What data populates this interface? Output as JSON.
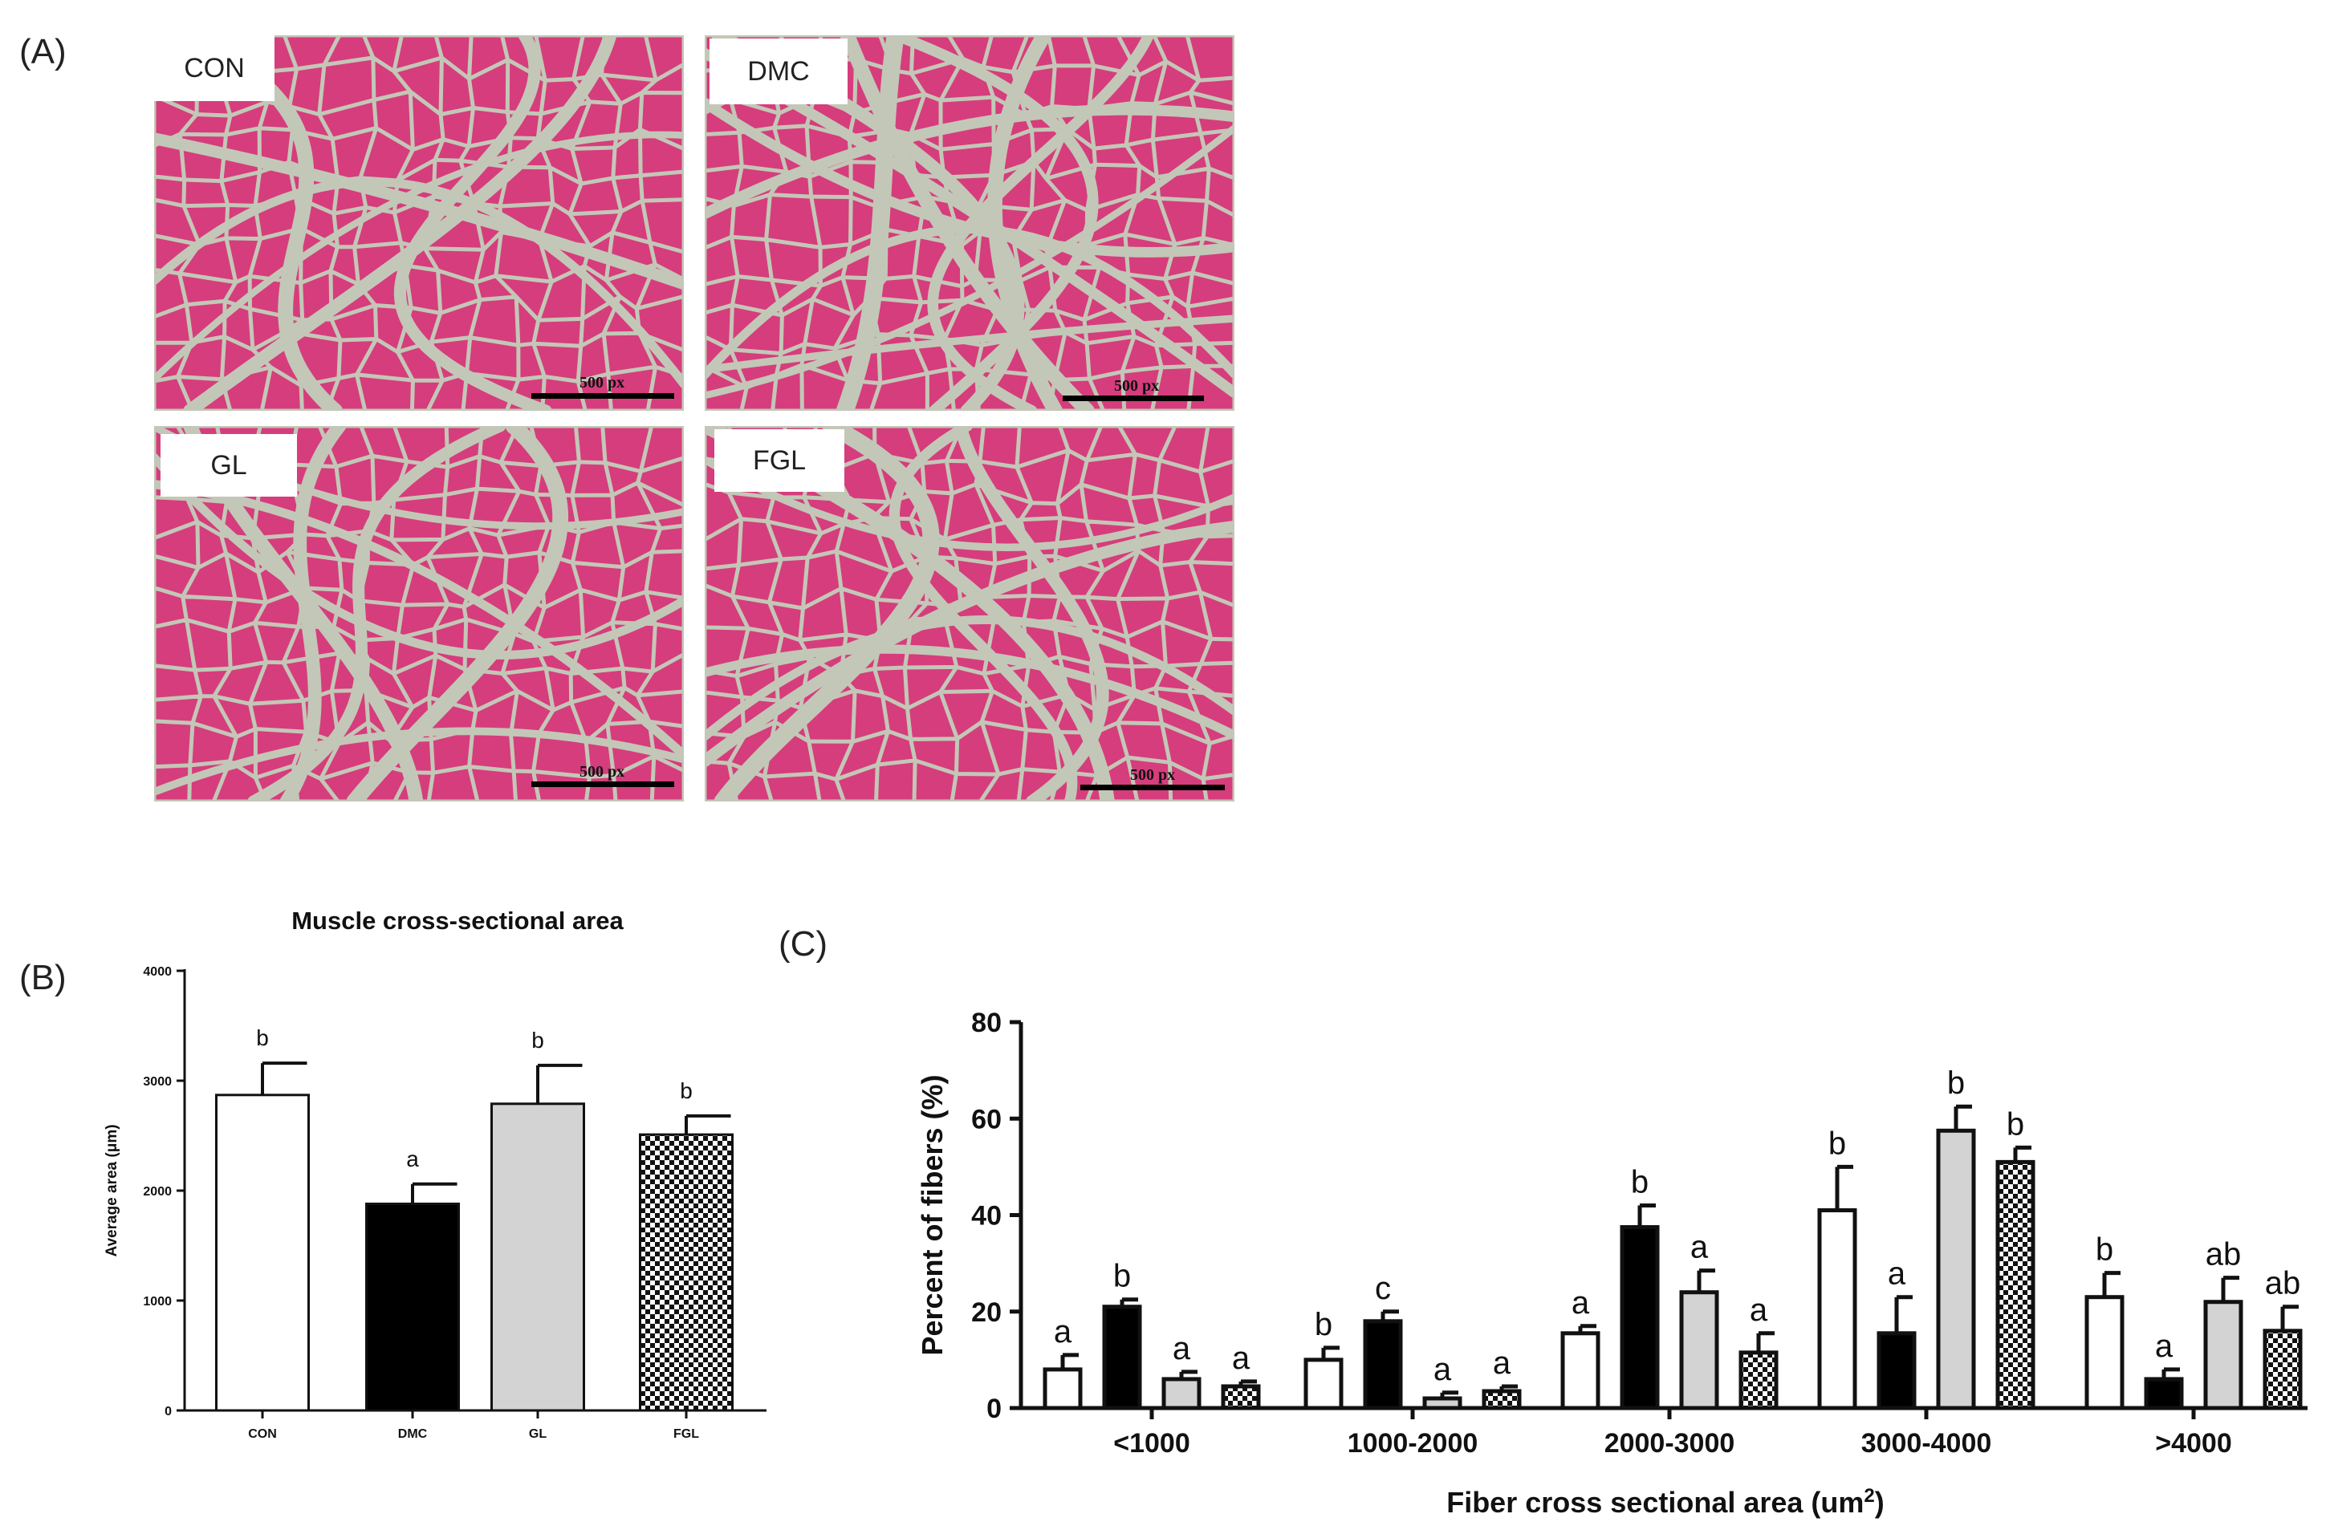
{
  "panel_a": {
    "letter": "(A)",
    "images": [
      {
        "label": "CON",
        "scale": "500 px"
      },
      {
        "label": "DMC",
        "scale": "500 px"
      },
      {
        "label": "GL",
        "scale": "500 px"
      },
      {
        "label": "FGL",
        "scale": "500 px"
      }
    ]
  },
  "panel_b": {
    "letter": "(B)"
  },
  "panel_c": {
    "letter": "(C)"
  },
  "colors": {
    "tissue": "#d63d7c",
    "membrane": "#c3c7b7",
    "CON": "#ffffff",
    "DMC": "#000000",
    "GL": "#d3d3d3",
    "FGL": "checker"
  },
  "chart_data": [
    {
      "type": "bar",
      "title": "Muscle cross-sectional area",
      "xlabel": "",
      "ylabel": "Average area (μm)",
      "categories": [
        "CON",
        "DMC",
        "GL",
        "FGL"
      ],
      "values": [
        2870,
        1880,
        2790,
        2510
      ],
      "errors": [
        290,
        180,
        350,
        170
      ],
      "letters": [
        "b",
        "a",
        "b",
        "b"
      ],
      "ylim": [
        0,
        4000
      ],
      "yticks": [
        "0",
        "1000",
        "2000",
        "3000",
        "4000"
      ]
    },
    {
      "type": "bar",
      "title": "",
      "xlabel": "Fiber cross sectional area (um",
      "xlabel_sup": "2",
      "xlabel_end": ")",
      "ylabel": "Percent of fibers (%)",
      "categories": [
        "<1000",
        "1000-2000",
        "2000-3000",
        "3000-4000",
        ">4000"
      ],
      "series": [
        {
          "values": [
            8,
            10,
            15.5,
            41,
            23
          ],
          "errors": [
            3,
            2.5,
            1.5,
            9,
            5
          ],
          "letters": [
            "a",
            "b",
            "a",
            "b",
            "b"
          ]
        },
        {
          "values": [
            21,
            18,
            37.5,
            15.5,
            6
          ],
          "errors": [
            1.5,
            2,
            4.5,
            7.5,
            2
          ],
          "letters": [
            "b",
            "c",
            "b",
            "a",
            "a"
          ]
        },
        {
          "values": [
            6,
            2,
            24,
            57.5,
            22
          ],
          "errors": [
            1.5,
            1.2,
            4.5,
            5,
            5
          ],
          "letters": [
            "a",
            "a",
            "a",
            "b",
            "ab"
          ]
        },
        {
          "values": [
            4.5,
            3.5,
            11.5,
            51,
            16
          ],
          "errors": [
            1,
            1,
            4,
            3,
            5
          ],
          "letters": [
            "a",
            "a",
            "a",
            "b",
            "ab"
          ]
        }
      ],
      "ylim": [
        0,
        80
      ],
      "yticks": [
        "0",
        "20",
        "40",
        "60",
        "80"
      ]
    }
  ]
}
